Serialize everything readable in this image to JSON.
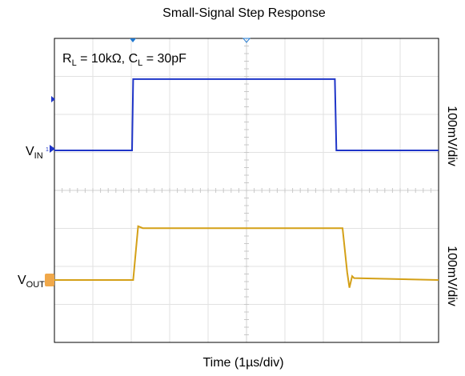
{
  "chart_data": {
    "type": "line",
    "title": "Small-Signal Step Response",
    "xlabel": "Time (1µs/div)",
    "annotation": {
      "prefix_r": "R",
      "sub_r": "L",
      "middle": " = 10kΩ, C",
      "sub_c": "L",
      "suffix": " = 30pF"
    },
    "scale_labels": [
      "100mV/div",
      "100mV/div"
    ],
    "x_divisions": 10,
    "y_divisions": 8,
    "grid": true,
    "xlim": [
      0,
      10
    ],
    "series": [
      {
        "name": "V_IN",
        "label_main": "V",
        "label_sub": "IN",
        "color": "#1f35c8",
        "points": [
          [
            0,
            0
          ],
          [
            2.02,
            0
          ],
          [
            2.05,
            1.65
          ],
          [
            7.3,
            1.65
          ],
          [
            7.34,
            0
          ],
          [
            10,
            0
          ]
        ]
      },
      {
        "name": "V_OUT",
        "label_main": "V",
        "label_sub": "OUT",
        "color": "#d4a017",
        "points": [
          [
            0,
            0
          ],
          [
            2.05,
            0
          ],
          [
            2.18,
            1.4
          ],
          [
            2.3,
            1.35
          ],
          [
            7.5,
            1.35
          ],
          [
            7.62,
            0.2
          ],
          [
            7.68,
            -0.2
          ],
          [
            7.75,
            0.1
          ],
          [
            7.8,
            0.05
          ],
          [
            10,
            0
          ]
        ]
      }
    ],
    "marker_colors": {
      "trigger": "#1f78d1",
      "ch1": "#1f35c8",
      "ch2": "#f0a84a"
    }
  }
}
